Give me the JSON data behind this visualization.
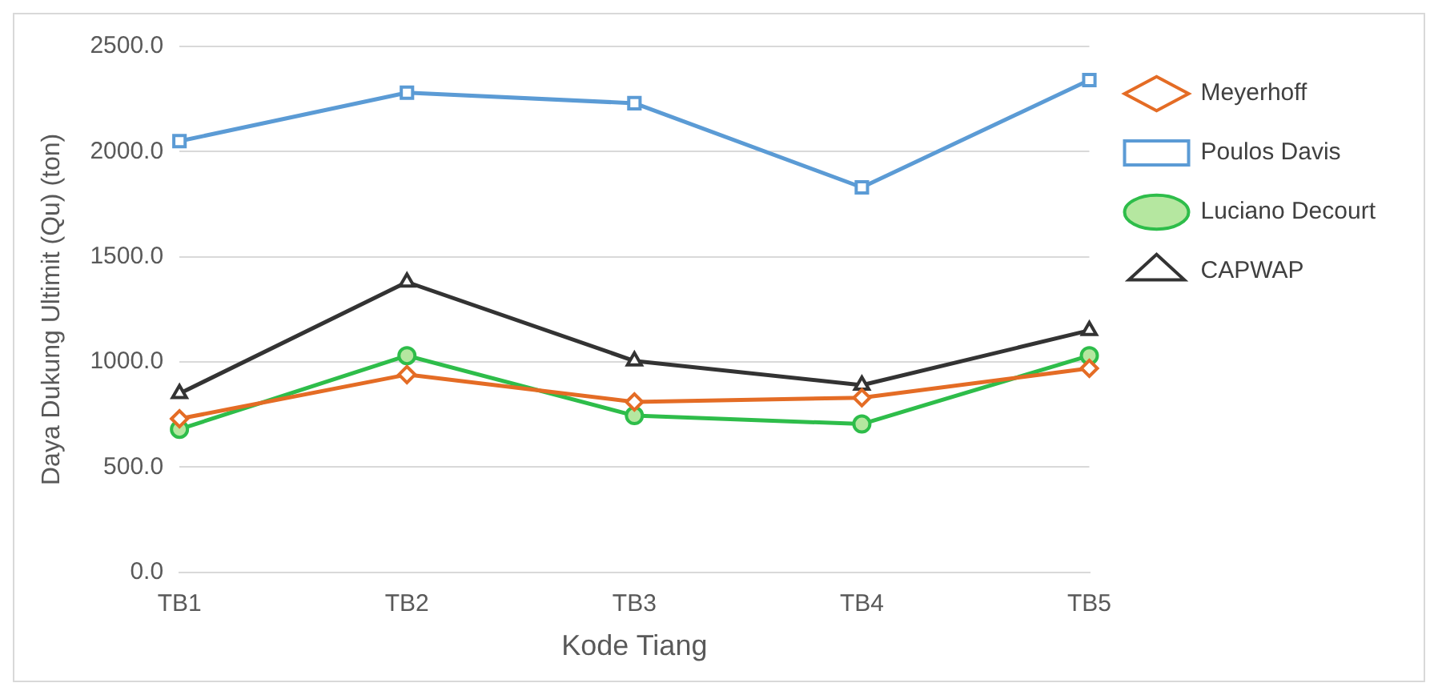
{
  "chart_data": {
    "type": "line",
    "xlabel": "Kode Tiang",
    "ylabel": "Daya Dukung Ultimit (Qu) (ton)",
    "categories": [
      "TB1",
      "TB2",
      "TB3",
      "TB4",
      "TB5"
    ],
    "series": [
      {
        "name": "Meyerhoff",
        "color": "#e46c25",
        "marker": "diamond",
        "values": [
          730,
          940,
          810,
          830,
          970
        ]
      },
      {
        "name": "Poulos Davis",
        "color": "#5b9bd5",
        "marker": "square",
        "values": [
          2050,
          2280,
          2230,
          1830,
          2340
        ]
      },
      {
        "name": "Luciano Decourt",
        "color": "#2ebd4a",
        "marker": "circle",
        "values": [
          680,
          1030,
          745,
          705,
          1030
        ]
      },
      {
        "name": "CAPWAP",
        "color": "#333333",
        "marker": "triangle",
        "values": [
          850,
          1380,
          1005,
          890,
          1150
        ]
      }
    ],
    "ylim": [
      0,
      2500
    ],
    "yticks": [
      {
        "value": 0,
        "label": "0.0"
      },
      {
        "value": 500,
        "label": "500.0"
      },
      {
        "value": 1000,
        "label": "1000.0"
      },
      {
        "value": 1500,
        "label": "1500.0"
      },
      {
        "value": 2000,
        "label": "2000.0"
      },
      {
        "value": 2500,
        "label": "2500.0"
      }
    ],
    "grid": "y",
    "legend": "right",
    "line_style": "solid"
  }
}
